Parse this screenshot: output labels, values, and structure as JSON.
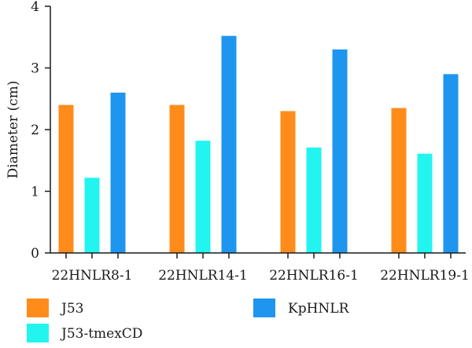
{
  "chart_data": {
    "type": "bar",
    "categories": [
      "22HNLR8-1",
      "22HNLR14-1",
      "22HNLR16-1",
      "22HNLR19-1"
    ],
    "series": [
      {
        "name": "J53",
        "color": "#ff8c1a",
        "values": [
          2.4,
          2.4,
          2.3,
          2.35
        ]
      },
      {
        "name": "J53-tmexCD",
        "color": "#22f5f0",
        "values": [
          1.22,
          1.82,
          1.71,
          1.61
        ]
      },
      {
        "name": "KpHNLR",
        "color": "#1e96f0",
        "values": [
          2.6,
          3.52,
          3.3,
          2.9
        ]
      }
    ],
    "xlabel": "",
    "ylabel": "Diameter (cm)",
    "ylim": [
      0,
      4
    ],
    "yticks": [
      0,
      1,
      2,
      3,
      4
    ],
    "grid": false,
    "legend_placement": "bottom"
  }
}
